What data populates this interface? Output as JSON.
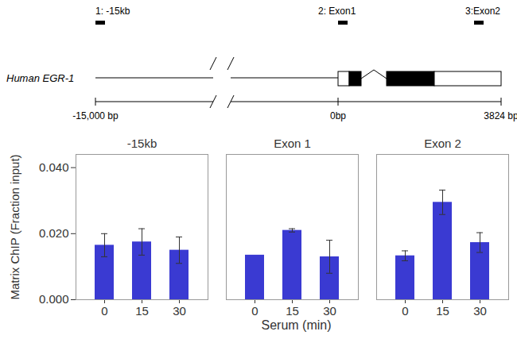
{
  "chart_data": {
    "type": "bar",
    "ylabel": "Matrix ChIP (Fraction input)",
    "xlabel": "Serum (min)",
    "categories": [
      0,
      15,
      30
    ],
    "ylim": [
      0,
      0.044
    ],
    "yticks": [
      {
        "value": 0,
        "label": "0.000"
      },
      {
        "value": 0.02,
        "label": "0.020"
      },
      {
        "value": 0.04,
        "label": "0.040"
      }
    ],
    "color": "#3a3ad2",
    "grid": false,
    "panels": [
      {
        "title": "-15kb",
        "values": [
          0.0165,
          0.0175,
          0.015
        ],
        "errors": [
          0.0035,
          0.004,
          0.004
        ]
      },
      {
        "title": "Exon 1",
        "values": [
          0.0135,
          0.021,
          0.013
        ],
        "errors": [
          null,
          0.0005,
          0.005
        ]
      },
      {
        "title": "Exon 2",
        "values": [
          0.0133,
          0.0295,
          0.0173
        ],
        "errors": [
          0.0015,
          0.0037,
          0.003
        ]
      }
    ]
  },
  "diagram": {
    "gene": "Human EGR-1",
    "regions": [
      "1: -15kb",
      "2: Exon1",
      "3:Exon2"
    ],
    "scale_labels": [
      "-15,000 bp",
      "0bp",
      "3824 bp"
    ]
  }
}
